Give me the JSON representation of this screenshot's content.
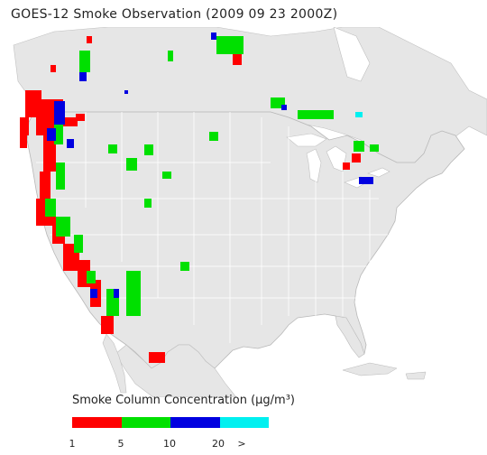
{
  "title": "GOES-12 Smoke Observation (2009 09 23  2000Z)",
  "legend": {
    "title": "Smoke Column Concentration (μg/m³)",
    "bins": [
      {
        "color": "#ff0000"
      },
      {
        "color": "#00e000"
      },
      {
        "color": "#0000e0"
      },
      {
        "color": "#00f0f0"
      }
    ],
    "ticks": [
      "1",
      "5",
      "10",
      "20",
      ">"
    ]
  },
  "map_colors": {
    "land": "#e6e6e6",
    "water": "#ffffff",
    "borders": "#ffffff",
    "coast": "#b8b8b8"
  }
}
